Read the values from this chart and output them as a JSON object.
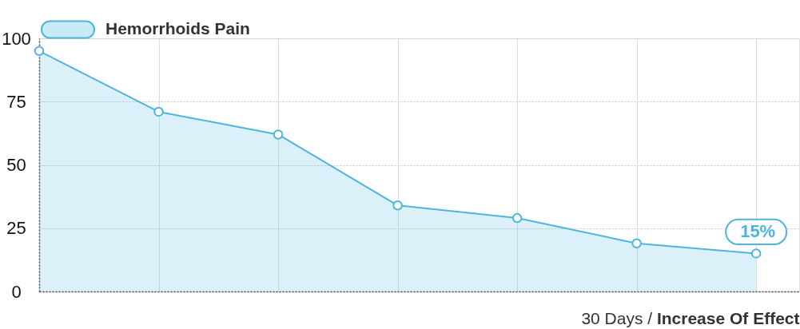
{
  "chart_data": {
    "type": "area",
    "categories": [
      null,
      null,
      null,
      null,
      null,
      null,
      null
    ],
    "series": [
      {
        "name": "Hemorrhoids Pain",
        "color": "#4cb6dd",
        "values": [
          95,
          71,
          62,
          34,
          29,
          19,
          15
        ],
        "value_labels": [
          null,
          null,
          null,
          null,
          null,
          null,
          "15%"
        ]
      }
    ],
    "xlabel": "30 Days / Increase Of Effect",
    "ylim": [
      0,
      100
    ],
    "yticks": [
      0,
      25,
      50,
      75,
      100
    ],
    "grid": true,
    "legend": "top left",
    "marker": "circle",
    "line_style": "solid",
    "tick_labels": "y"
  }
}
